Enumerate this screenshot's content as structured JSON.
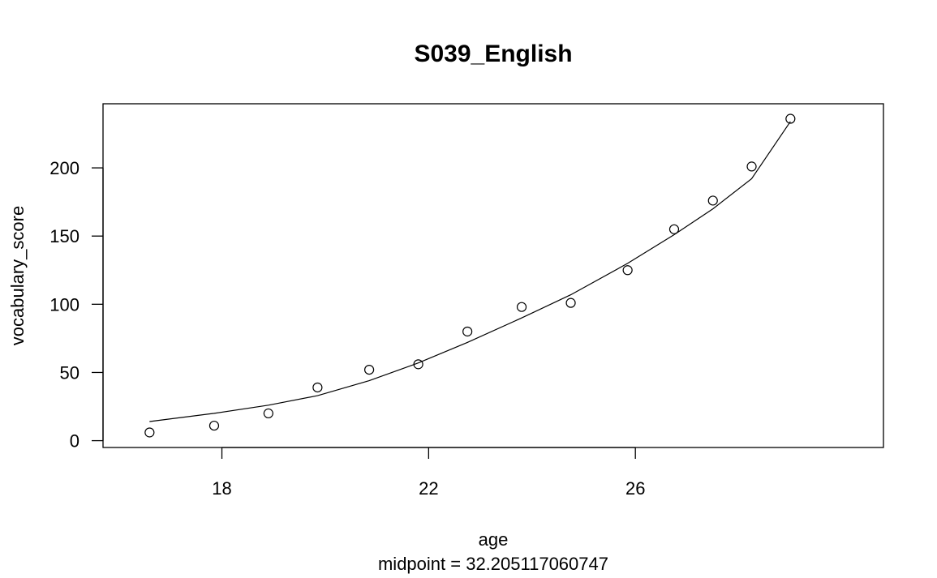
{
  "chart_data": {
    "type": "scatter",
    "title": "S039_English",
    "xlabel": "age",
    "ylabel": "vocabulary_score",
    "subtitle": "midpoint = 32.205117060747",
    "xlim": [
      15.7,
      30.8
    ],
    "ylim": [
      -5,
      247
    ],
    "x_ticks": [
      18,
      22,
      26
    ],
    "y_ticks": [
      0,
      50,
      100,
      150,
      200
    ],
    "grid": false,
    "series": [
      {
        "kind": "points",
        "marker": "open-circle",
        "x": [
          16.6,
          17.85,
          18.9,
          19.85,
          20.85,
          21.8,
          22.75,
          23.8,
          24.75,
          25.85,
          26.75,
          27.5,
          28.25,
          29.0
        ],
        "y": [
          6,
          11,
          20,
          39,
          52,
          56,
          80,
          98,
          101,
          125,
          155,
          176,
          201,
          236
        ]
      },
      {
        "kind": "line",
        "x": [
          16.6,
          17.85,
          18.9,
          19.85,
          20.85,
          21.8,
          22.75,
          23.8,
          24.75,
          25.85,
          26.75,
          27.5,
          28.25,
          29.0
        ],
        "y": [
          14,
          20,
          26,
          33,
          44,
          57,
          72,
          90,
          107,
          130,
          151,
          170,
          192,
          234
        ]
      }
    ]
  }
}
